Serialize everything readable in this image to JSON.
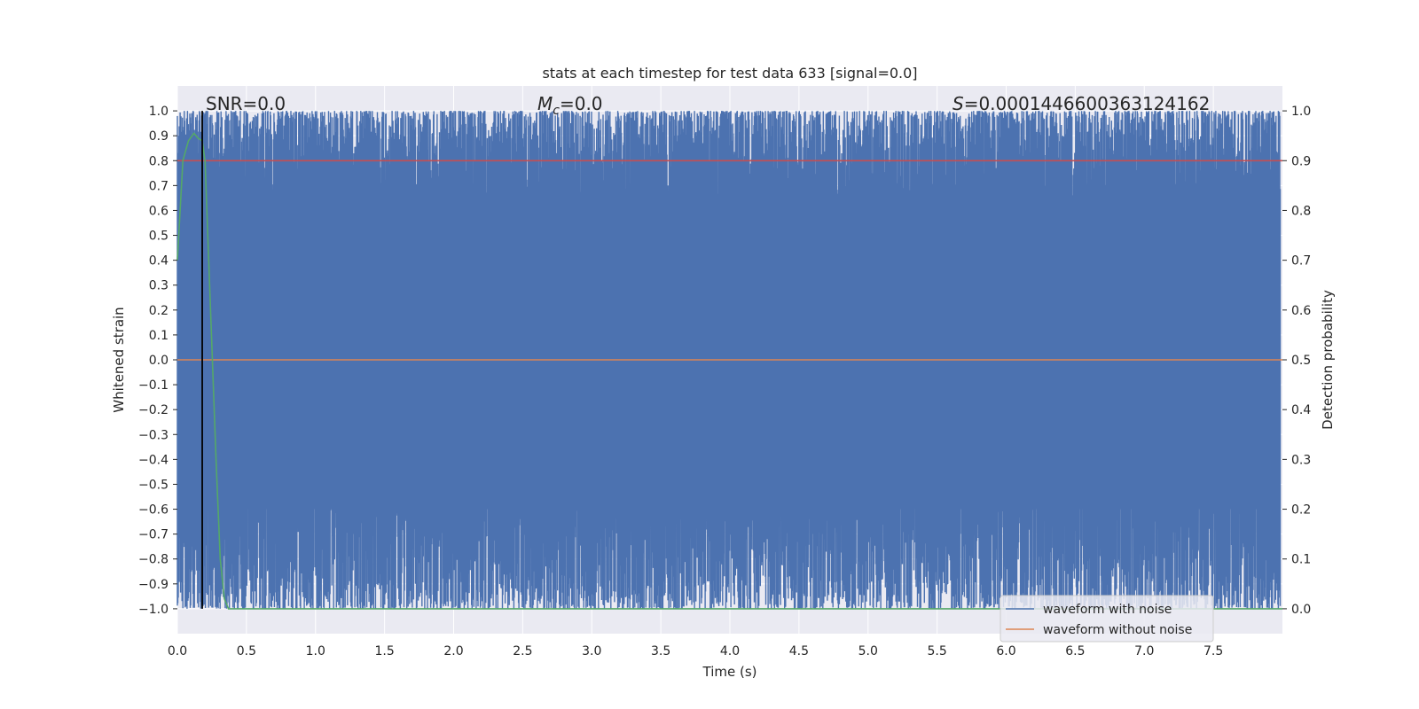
{
  "chart_data": {
    "type": "line",
    "title": "stats at each timestep for test data 633 [signal=0.0]",
    "xlabel": "Time (s)",
    "ylabel_left": "Whitened strain",
    "ylabel_right": "Detection probability",
    "xlim": [
      0.0,
      8.0
    ],
    "ylim_left": [
      -1.1,
      1.1
    ],
    "ylim_right": [
      -0.05,
      1.05
    ],
    "x_ticks": [
      "0.0",
      "0.5",
      "1.0",
      "1.5",
      "2.0",
      "2.5",
      "3.0",
      "3.5",
      "4.0",
      "4.5",
      "5.0",
      "5.5",
      "6.0",
      "6.5",
      "7.0",
      "7.5"
    ],
    "y_ticks_left": [
      "1.0",
      "0.9",
      "0.8",
      "0.7",
      "0.6",
      "0.5",
      "0.4",
      "0.3",
      "0.2",
      "0.1",
      "0.0",
      "−0.1",
      "−0.2",
      "−0.3",
      "−0.4",
      "−0.5",
      "−0.6",
      "−0.7",
      "−0.8",
      "−0.9",
      "−1.0"
    ],
    "y_ticks_right": [
      "1.0",
      "0.9",
      "0.8",
      "0.7",
      "0.6",
      "0.5",
      "0.4",
      "0.3",
      "0.2",
      "0.1",
      "0.0"
    ],
    "grid": true,
    "annotations": {
      "snr_label": "SNR=0.0",
      "mc_symbol": "M",
      "mc_sub": "c",
      "mc_value": "=0.0",
      "s_symbol": "S",
      "s_value": "=0.0001446600363124162"
    },
    "marker_line_x": 0.18,
    "threshold_right": 0.9,
    "series": [
      {
        "name": "waveform with noise",
        "axis": "left",
        "color": "#4c72b0",
        "description_values": {
          "min": -1.0,
          "max": 1.0,
          "dense_noise": true
        }
      },
      {
        "name": "waveform without noise",
        "axis": "left",
        "color": "#dd8452",
        "x": [
          0.0,
          8.0
        ],
        "y": [
          0.0,
          0.0
        ]
      },
      {
        "axis": "right",
        "color": "#55a868",
        "x": [
          0.0,
          0.04,
          0.08,
          0.12,
          0.15,
          0.18,
          0.2,
          0.24,
          0.28,
          0.31,
          0.34,
          0.37,
          0.4,
          8.0
        ],
        "y": [
          0.7,
          0.9,
          0.94,
          0.955,
          0.945,
          0.94,
          0.9,
          0.6,
          0.3,
          0.1,
          0.02,
          0.0,
          0.0,
          0.0
        ]
      },
      {
        "axis": "right",
        "color": "#c44e52",
        "x": [
          0.0,
          8.0
        ],
        "y": [
          0.9,
          0.9
        ]
      }
    ],
    "legend": {
      "placement": "lower right",
      "entries": [
        {
          "label": "waveform with noise",
          "color": "#4c72b0"
        },
        {
          "label": "waveform without noise",
          "color": "#dd8452"
        }
      ]
    },
    "colors": {
      "plot_bg": "#eaeaf2",
      "grid": "#ffffff",
      "marker_line": "#000000"
    }
  }
}
